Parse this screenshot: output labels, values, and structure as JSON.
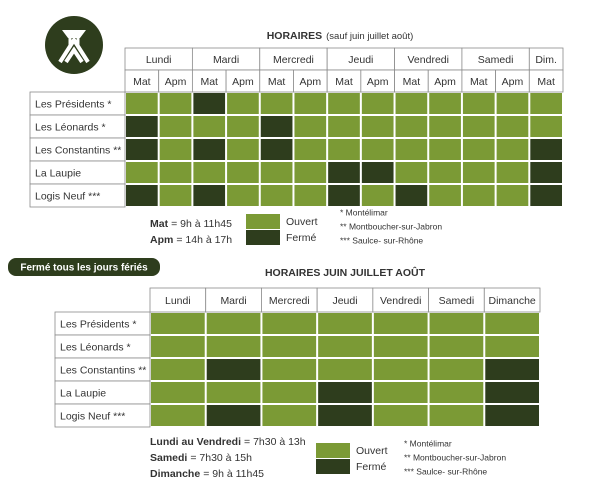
{
  "top": {
    "title": {
      "bold": "HORAIRES",
      "rest": "(sauf juin juillet août)"
    },
    "days": [
      {
        "name": "Lundi",
        "slots": [
          "Mat",
          "Apm"
        ]
      },
      {
        "name": "Mardi",
        "slots": [
          "Mat",
          "Apm"
        ]
      },
      {
        "name": "Mercredi",
        "slots": [
          "Mat",
          "Apm"
        ]
      },
      {
        "name": "Jeudi",
        "slots": [
          "Mat",
          "Apm"
        ]
      },
      {
        "name": "Vendredi",
        "slots": [
          "Mat",
          "Apm"
        ]
      },
      {
        "name": "Samedi",
        "slots": [
          "Mat",
          "Apm"
        ]
      },
      {
        "name": "Dim.",
        "slots": [
          "Mat"
        ]
      }
    ],
    "rows": [
      {
        "label": "Les Présidents *",
        "cells": [
          "#7b9a35",
          "#7b9a35",
          "#2e3d1d",
          "#7b9a35",
          "#7b9a35",
          "#7b9a35",
          "#7b9a35",
          "#7b9a35",
          "#7b9a35",
          "#7b9a35",
          "#7b9a35",
          "#7b9a35",
          "#7b9a35"
        ]
      },
      {
        "label": "Les Léonards *",
        "cells": [
          "#2e3d1d",
          "#7b9a35",
          "#7b9a35",
          "#7b9a35",
          "#2e3d1d",
          "#7b9a35",
          "#7b9a35",
          "#7b9a35",
          "#7b9a35",
          "#7b9a35",
          "#7b9a35",
          "#7b9a35",
          "#7b9a35"
        ]
      },
      {
        "label": "Les Constantins **",
        "cells": [
          "#2e3d1d",
          "#7b9a35",
          "#2e3d1d",
          "#7b9a35",
          "#2e3d1d",
          "#7b9a35",
          "#7b9a35",
          "#7b9a35",
          "#7b9a35",
          "#7b9a35",
          "#7b9a35",
          "#7b9a35",
          "#2e3d1d"
        ]
      },
      {
        "label": "La Laupie",
        "cells": [
          "#7b9a35",
          "#7b9a35",
          "#7b9a35",
          "#7b9a35",
          "#7b9a35",
          "#7b9a35",
          "#2e3d1d",
          "#2e3d1d",
          "#7b9a35",
          "#7b9a35",
          "#7b9a35",
          "#7b9a35",
          "#2e3d1d"
        ]
      },
      {
        "label": "Logis Neuf ***",
        "cells": [
          "#2e3d1d",
          "#7b9a35",
          "#2e3d1d",
          "#7b9a35",
          "#7b9a35",
          "#7b9a35",
          "#2e3d1d",
          "#7b9a35",
          "#2e3d1d",
          "#7b9a35",
          "#7b9a35",
          "#7b9a35",
          "#2e3d1d"
        ]
      }
    ],
    "legend": {
      "hours": [
        {
          "key": "Mat",
          "text": "= 9h à 11h45"
        },
        {
          "key": "Apm",
          "text": "= 14h à 17h"
        }
      ],
      "status": [
        {
          "label": "Ouvert",
          "color": "#7b9a35"
        },
        {
          "label": "Fermé",
          "color": "#2e3d1d"
        }
      ],
      "notes": [
        "* Montélimar",
        "** Montboucher-sur-Jabron",
        "*** Saulce- sur-Rhône"
      ]
    }
  },
  "banner": "Fermé tous les jours fériés",
  "bottom": {
    "title": "HORAIRES JUIN JUILLET AOÛT",
    "days": [
      "Lundi",
      "Mardi",
      "Mercredi",
      "Jeudi",
      "Vendredi",
      "Samedi",
      "Dimanche"
    ],
    "rows": [
      {
        "label": "Les Présidents *",
        "cells": [
          "#7b9a35",
          "#7b9a35",
          "#7b9a35",
          "#7b9a35",
          "#7b9a35",
          "#7b9a35",
          "#7b9a35"
        ]
      },
      {
        "label": "Les Léonards *",
        "cells": [
          "#7b9a35",
          "#7b9a35",
          "#7b9a35",
          "#7b9a35",
          "#7b9a35",
          "#7b9a35",
          "#7b9a35"
        ]
      },
      {
        "label": "Les Constantins **",
        "cells": [
          "#7b9a35",
          "#2e3d1d",
          "#7b9a35",
          "#7b9a35",
          "#7b9a35",
          "#7b9a35",
          "#2e3d1d"
        ]
      },
      {
        "label": "La Laupie",
        "cells": [
          "#7b9a35",
          "#7b9a35",
          "#7b9a35",
          "#2e3d1d",
          "#7b9a35",
          "#7b9a35",
          "#2e3d1d"
        ]
      },
      {
        "label": "Logis Neuf ***",
        "cells": [
          "#7b9a35",
          "#2e3d1d",
          "#7b9a35",
          "#2e3d1d",
          "#7b9a35",
          "#7b9a35",
          "#2e3d1d"
        ]
      }
    ],
    "legend": {
      "hours": [
        {
          "key": "Lundi au Vendredi",
          "text": "= 7h30 à 13h"
        },
        {
          "key": "Samedi",
          "text": "= 7h30 à 15h"
        },
        {
          "key": "Dimanche",
          "text": "= 9h à 11h45"
        }
      ],
      "status": [
        {
          "label": "Ouvert",
          "color": "#7b9a35"
        },
        {
          "label": "Fermé",
          "color": "#2e3d1d"
        }
      ],
      "notes": [
        "* Montélimar",
        "** Montboucher-sur-Jabron",
        "*** Saulce- sur-Rhône"
      ]
    }
  }
}
